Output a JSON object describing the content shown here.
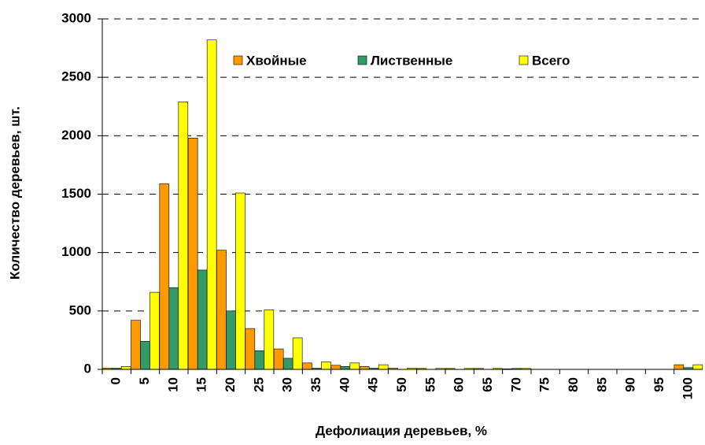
{
  "chart_data": {
    "type": "bar",
    "x_label": "Дефолиация деревьев, %",
    "y_label": "Количество деревьев, шт.",
    "categories": [
      "0",
      "5",
      "10",
      "15",
      "20",
      "25",
      "30",
      "35",
      "40",
      "45",
      "50",
      "55",
      "60",
      "65",
      "70",
      "75",
      "80",
      "85",
      "90",
      "95",
      "100"
    ],
    "series": [
      {
        "name": "Хвойные",
        "color": "#ff9900",
        "values": [
          10,
          420,
          1590,
          1980,
          1020,
          350,
          175,
          55,
          35,
          25,
          10,
          8,
          8,
          8,
          5,
          0,
          0,
          0,
          0,
          0,
          40
        ]
      },
      {
        "name": "Лиственные",
        "color": "#339966",
        "values": [
          10,
          240,
          700,
          850,
          500,
          160,
          95,
          10,
          25,
          10,
          0,
          0,
          0,
          0,
          8,
          0,
          0,
          0,
          0,
          0,
          15
        ]
      },
      {
        "name": "Всего",
        "color": "#ffff00",
        "values": [
          25,
          660,
          2290,
          2820,
          1510,
          510,
          270,
          65,
          55,
          40,
          10,
          8,
          8,
          8,
          8,
          0,
          0,
          0,
          0,
          0,
          40
        ]
      }
    ],
    "ylim": [
      0,
      3000
    ],
    "yticks": [
      0,
      500,
      1000,
      1500,
      2000,
      2500,
      3000
    ],
    "grid": true
  }
}
